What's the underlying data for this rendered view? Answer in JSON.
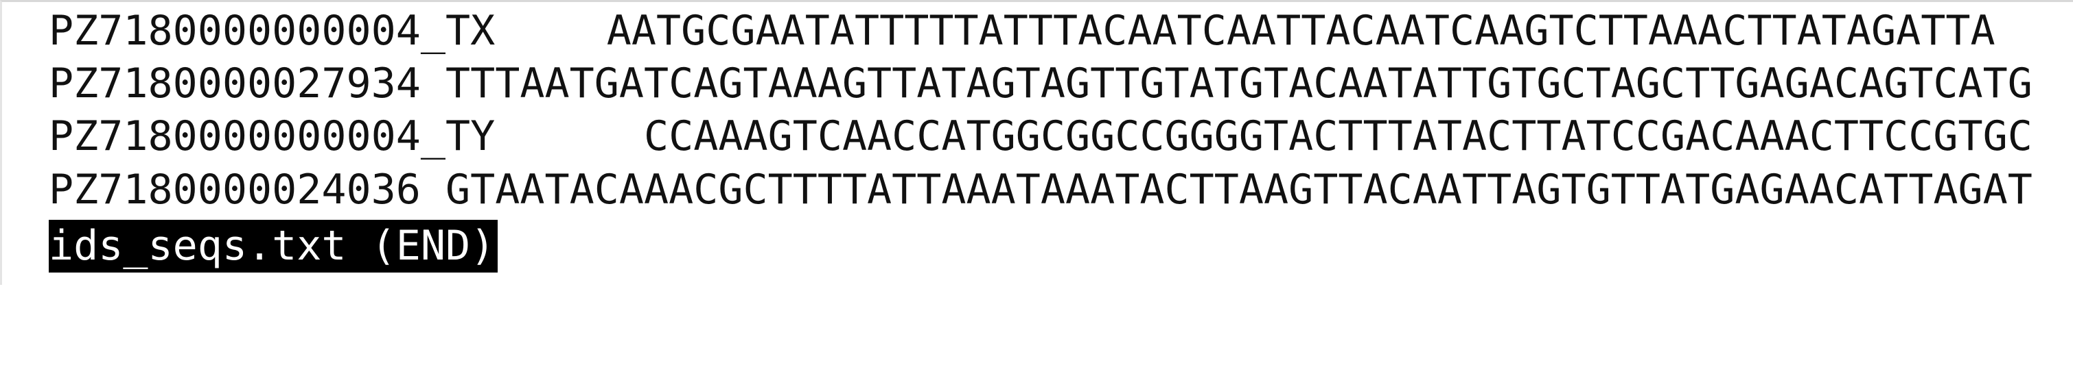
{
  "lines": [
    {
      "id": "PZ7180000000004_TX",
      "sequence": "AATGCGAATATTTTTATTTACAATCAATTACAATCAAGTCTTAAACTTATAGATTA"
    },
    {
      "id": "PZ7180000027934",
      "sequence": "TTTAATGATCAGTAAAGTTATAGTAGTTGTATGTACAATATTGTGCTAGCTTGAGACAGTCATG"
    },
    {
      "id": "PZ7180000000004_TY",
      "sequence": "CCAAAGTCAACCATGGCGGCCGGGGTACTTTATACTTATCCGACAAACTTCCGTGC"
    },
    {
      "id": "PZ7180000024036",
      "sequence": "GTAATACAAACGCTTTTATTAAATAAATACTTAAGTTACAATTAGTGTTATGAGAACATTAGAT"
    }
  ],
  "status": "ids_seqs.txt (END)"
}
